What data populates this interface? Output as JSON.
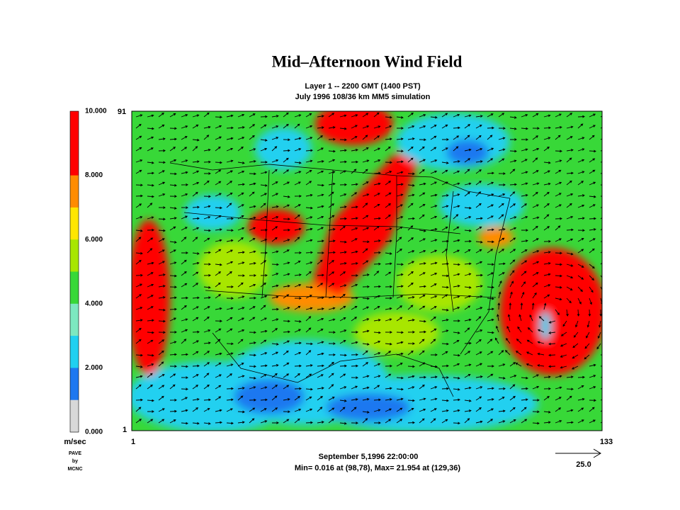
{
  "title": "Mid–Afternoon Wind Field",
  "subtitle": [
    "Layer 1 -- 2200 GMT (1400 PST)",
    "July 1996 108/36 km MM5 simulation"
  ],
  "colorbar": {
    "labels": [
      "10.000",
      "8.000",
      "6.000",
      "4.000",
      "2.000",
      "0.000"
    ],
    "colors": [
      "#ff0000",
      "#ff0000",
      "#ff8c00",
      "#ffe600",
      "#a8e600",
      "#38d838",
      "#7de8c0",
      "#20d0f0",
      "#1e78f0",
      "#d8d8d8"
    ],
    "unit": "m/sec"
  },
  "credit": [
    "PAVE",
    "by",
    "MCNC"
  ],
  "axes": {
    "y_top": "91",
    "y_bottom": "1",
    "x_left": "1",
    "x_right": "133"
  },
  "footer": [
    "September 5,1996 22:00:00",
    "Min=  0.016 at (98,78), Max=  21.954 at (129,36)"
  ],
  "reference_vector": "25.0"
}
